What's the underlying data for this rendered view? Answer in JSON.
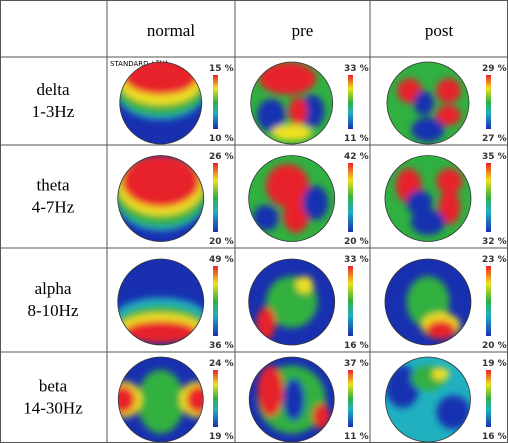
{
  "header": {
    "columns": [
      "normal",
      "pre",
      "post"
    ]
  },
  "standard_label": "STANDARD / 정상",
  "rows": [
    {
      "band": "delta",
      "range": "1-3Hz",
      "cells": [
        {
          "max": "15 %",
          "min": "10 %"
        },
        {
          "max": "33 %",
          "min": "11 %"
        },
        {
          "max": "29 %",
          "min": "27 %"
        }
      ]
    },
    {
      "band": "theta",
      "range": "4-7Hz",
      "cells": [
        {
          "max": "26 %",
          "min": "20 %"
        },
        {
          "max": "42 %",
          "min": "20 %"
        },
        {
          "max": "35 %",
          "min": "32 %"
        }
      ]
    },
    {
      "band": "alpha",
      "range": "8-10Hz",
      "cells": [
        {
          "max": "49 %",
          "min": "36 %"
        },
        {
          "max": "33 %",
          "min": "16 %"
        },
        {
          "max": "23 %",
          "min": "20 %"
        }
      ]
    },
    {
      "band": "beta",
      "range": "14-30Hz",
      "cells": [
        {
          "max": "24 %",
          "min": "19 %"
        },
        {
          "max": "37 %",
          "min": "11 %"
        },
        {
          "max": "19 %",
          "min": "16 %"
        }
      ]
    }
  ]
}
